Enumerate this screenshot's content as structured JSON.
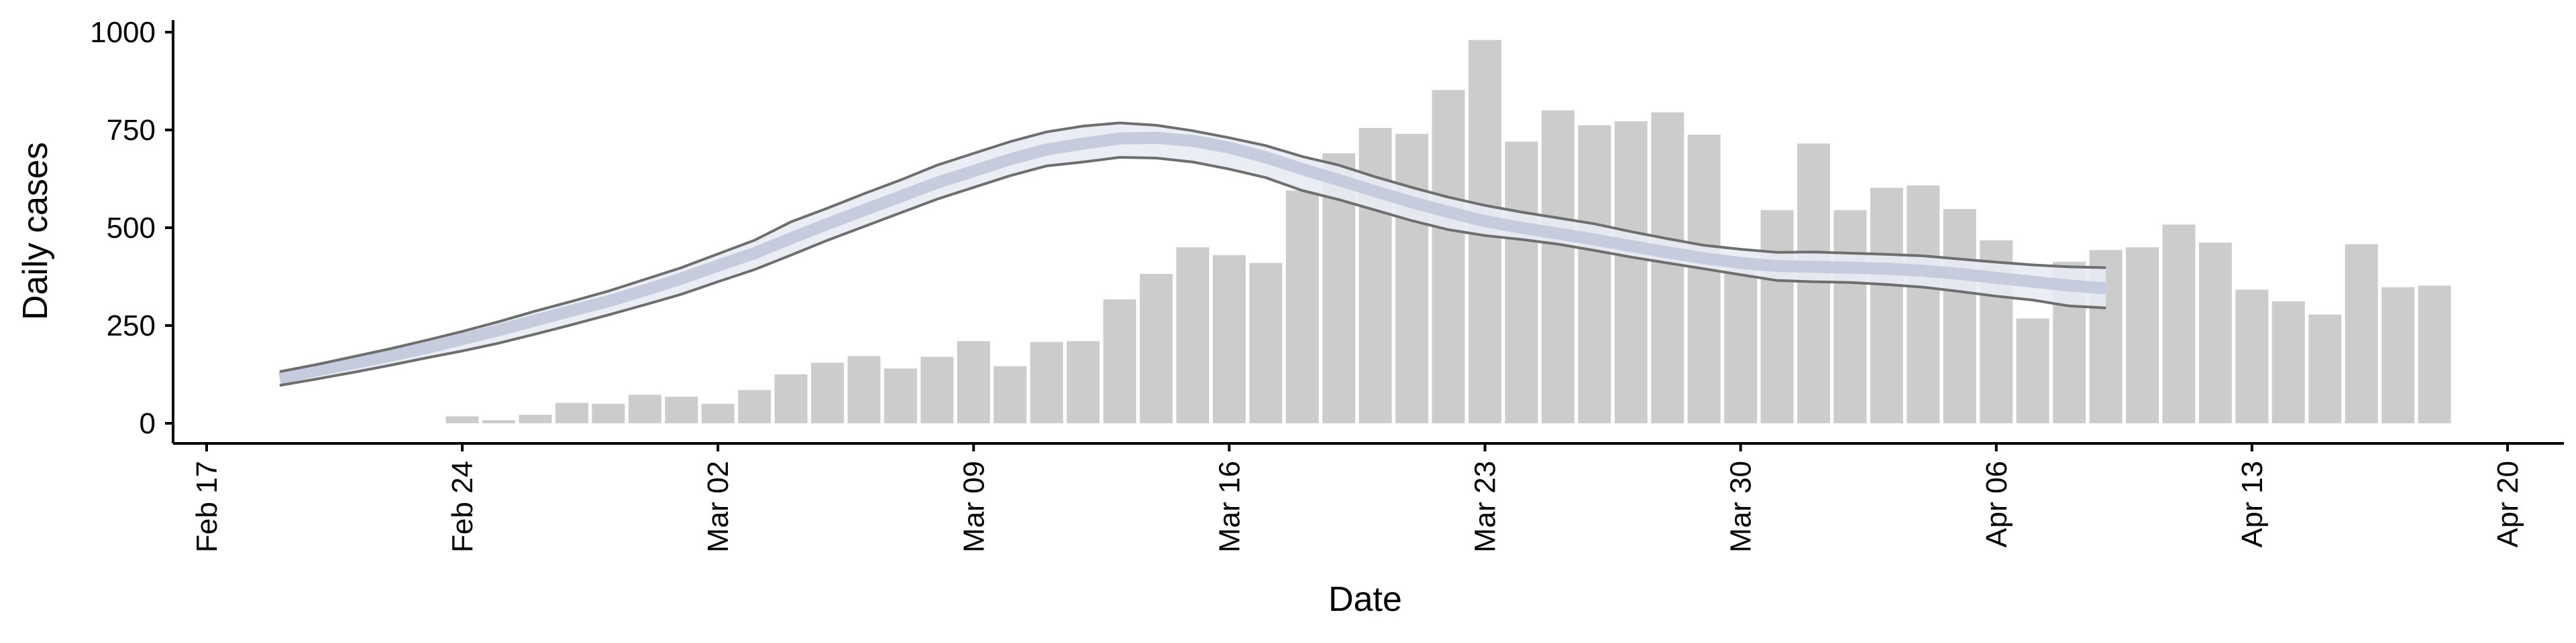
{
  "chart_data": {
    "type": "bar",
    "xlabel": "Date",
    "ylabel": "Daily cases",
    "ylim": [
      0,
      1000
    ],
    "y_ticks": [
      0,
      250,
      500,
      750,
      1000
    ],
    "x_ticks": [
      {
        "date": "2020-02-17",
        "label": "Feb 17"
      },
      {
        "date": "2020-02-24",
        "label": "Feb 24"
      },
      {
        "date": "2020-03-02",
        "label": "Mar 02"
      },
      {
        "date": "2020-03-09",
        "label": "Mar 09"
      },
      {
        "date": "2020-03-16",
        "label": "Mar 16"
      },
      {
        "date": "2020-03-23",
        "label": "Mar 23"
      },
      {
        "date": "2020-03-30",
        "label": "Mar 30"
      },
      {
        "date": "2020-04-06",
        "label": "Apr 06"
      },
      {
        "date": "2020-04-13",
        "label": "Apr 13"
      },
      {
        "date": "2020-04-20",
        "label": "Apr 20"
      }
    ],
    "xlim": [
      "2020-02-17",
      "2020-04-20"
    ],
    "bars": {
      "x": [
        "2020-02-24",
        "2020-02-25",
        "2020-02-26",
        "2020-02-27",
        "2020-02-28",
        "2020-02-29",
        "2020-03-01",
        "2020-03-02",
        "2020-03-03",
        "2020-03-04",
        "2020-03-05",
        "2020-03-06",
        "2020-03-07",
        "2020-03-08",
        "2020-03-09",
        "2020-03-10",
        "2020-03-11",
        "2020-03-12",
        "2020-03-13",
        "2020-03-14",
        "2020-03-15",
        "2020-03-16",
        "2020-03-17",
        "2020-03-18",
        "2020-03-19",
        "2020-03-20",
        "2020-03-21",
        "2020-03-22",
        "2020-03-23",
        "2020-03-24",
        "2020-03-25",
        "2020-03-26",
        "2020-03-27",
        "2020-03-28",
        "2020-03-29",
        "2020-03-30",
        "2020-03-31",
        "2020-04-01",
        "2020-04-02",
        "2020-04-03",
        "2020-04-04",
        "2020-04-05",
        "2020-04-06",
        "2020-04-07",
        "2020-04-08",
        "2020-04-09",
        "2020-04-10",
        "2020-04-11",
        "2020-04-12",
        "2020-04-13",
        "2020-04-14",
        "2020-04-15",
        "2020-04-16",
        "2020-04-17",
        "2020-04-18"
      ],
      "values": [
        18,
        8,
        22,
        52,
        50,
        73,
        68,
        50,
        85,
        125,
        155,
        172,
        140,
        170,
        210,
        146,
        208,
        210,
        317,
        382,
        450,
        430,
        410,
        595,
        690,
        755,
        740,
        852,
        980,
        720,
        800,
        762,
        772,
        795,
        738,
        395,
        545,
        715,
        545,
        602,
        608,
        548,
        468,
        268,
        413,
        443,
        450,
        508,
        462,
        342,
        312,
        278,
        458,
        348,
        352
      ]
    },
    "series": [
      {
        "type": "line-band",
        "x": [
          "2020-02-19",
          "2020-02-20",
          "2020-02-21",
          "2020-02-22",
          "2020-02-23",
          "2020-02-24",
          "2020-02-25",
          "2020-02-26",
          "2020-02-27",
          "2020-02-28",
          "2020-02-29",
          "2020-03-01",
          "2020-03-02",
          "2020-03-03",
          "2020-03-04",
          "2020-03-05",
          "2020-03-06",
          "2020-03-07",
          "2020-03-08",
          "2020-03-09",
          "2020-03-10",
          "2020-03-11",
          "2020-03-12",
          "2020-03-13",
          "2020-03-14",
          "2020-03-15",
          "2020-03-16",
          "2020-03-17",
          "2020-03-18",
          "2020-03-19",
          "2020-03-20",
          "2020-03-21",
          "2020-03-22",
          "2020-03-23",
          "2020-03-24",
          "2020-03-25",
          "2020-03-26",
          "2020-03-27",
          "2020-03-28",
          "2020-03-29",
          "2020-03-30",
          "2020-03-31",
          "2020-04-01",
          "2020-04-02",
          "2020-04-03",
          "2020-04-04",
          "2020-04-05",
          "2020-04-06",
          "2020-04-07",
          "2020-04-08",
          "2020-04-09"
        ],
        "median": [
          115,
          135,
          153,
          172,
          192,
          215,
          238,
          263,
          288,
          312,
          340,
          370,
          403,
          435,
          473,
          510,
          545,
          580,
          615,
          645,
          675,
          700,
          715,
          728,
          730,
          722,
          705,
          680,
          650,
          622,
          593,
          565,
          540,
          517,
          500,
          485,
          470,
          453,
          437,
          422,
          410,
          402,
          400,
          398,
          395,
          390,
          382,
          372,
          362,
          352,
          345
        ],
        "lower": [
          97,
          113,
          130,
          148,
          167,
          185,
          205,
          228,
          252,
          277,
          303,
          330,
          362,
          393,
          430,
          468,
          503,
          538,
          573,
          603,
          633,
          658,
          668,
          680,
          678,
          668,
          650,
          628,
          595,
          572,
          545,
          518,
          495,
          480,
          470,
          458,
          442,
          425,
          410,
          395,
          380,
          365,
          362,
          360,
          355,
          348,
          337,
          325,
          315,
          300,
          295
        ],
        "upper": [
          132,
          150,
          170,
          190,
          212,
          235,
          260,
          287,
          312,
          338,
          368,
          398,
          433,
          468,
          515,
          550,
          587,
          622,
          660,
          690,
          720,
          745,
          760,
          768,
          762,
          748,
          730,
          710,
          682,
          660,
          630,
          603,
          578,
          557,
          540,
          525,
          510,
          490,
          472,
          455,
          445,
          437,
          438,
          435,
          432,
          428,
          420,
          412,
          405,
          400,
          398
        ]
      }
    ],
    "colors": {
      "bar": "#cccccc",
      "band_fill": "#e9ebf3",
      "band_bound": "#6e6e6e",
      "median": "#c4cadc"
    },
    "grid": false,
    "legend": "none"
  }
}
